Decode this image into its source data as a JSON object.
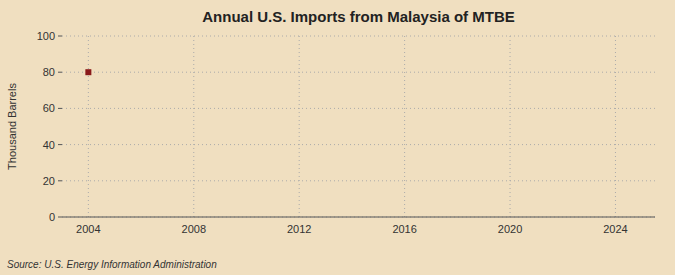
{
  "chart_data": {
    "type": "scatter",
    "title": "Annual U.S. Imports from Malaysia of MTBE",
    "ylabel": "Thousand Barrels",
    "source": "Source: U.S. Energy Information Administration",
    "x": [
      2004
    ],
    "values": [
      80
    ],
    "color": "#8b1a1a",
    "marker": "square",
    "xlim": [
      2003.0,
      2025.5
    ],
    "ylim": [
      0,
      100
    ],
    "xticks": [
      2004,
      2008,
      2012,
      2016,
      2020,
      2024
    ],
    "yticks": [
      0,
      20,
      40,
      60,
      80,
      100
    ],
    "grid": true
  }
}
